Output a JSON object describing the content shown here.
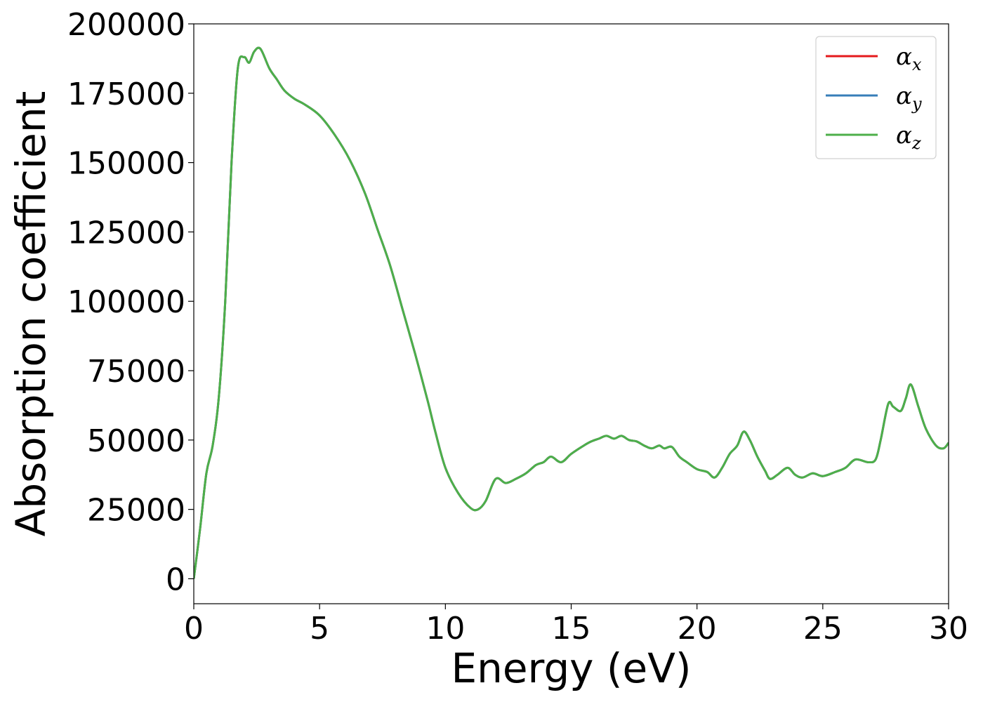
{
  "chart_data": {
    "type": "line",
    "title": "",
    "xlabel": "Energy (eV)",
    "ylabel": "Absorption coefficient",
    "xlim": [
      0,
      30
    ],
    "ylim": [
      -9000,
      200000
    ],
    "xticks": [
      0,
      5,
      10,
      15,
      20,
      25,
      30
    ],
    "xtick_labels": [
      "0",
      "5",
      "10",
      "15",
      "20",
      "25",
      "30"
    ],
    "yticks": [
      0,
      25000,
      50000,
      75000,
      100000,
      125000,
      150000,
      175000,
      200000
    ],
    "ytick_labels": [
      "0",
      "25000",
      "50000",
      "75000",
      "100000",
      "125000",
      "150000",
      "175000",
      "200000"
    ],
    "grid": false,
    "legend_position": "top-right",
    "x": [
      0,
      0.25,
      0.5,
      0.75,
      1.0,
      1.25,
      1.5,
      1.75,
      2.0,
      2.2,
      2.4,
      2.65,
      3.0,
      3.3,
      3.6,
      4.0,
      4.4,
      5.0,
      5.6,
      6.2,
      6.8,
      7.3,
      7.8,
      8.3,
      8.8,
      9.3,
      9.6,
      10.0,
      10.5,
      11.0,
      11.3,
      11.6,
      12.0,
      12.4,
      12.8,
      13.2,
      13.6,
      13.9,
      14.2,
      14.6,
      15.0,
      15.5,
      15.8,
      16.1,
      16.4,
      16.7,
      17.0,
      17.3,
      17.6,
      17.9,
      18.2,
      18.5,
      18.7,
      19.0,
      19.3,
      19.6,
      20.0,
      20.4,
      20.7,
      21.0,
      21.3,
      21.6,
      21.85,
      22.1,
      22.4,
      22.7,
      22.9,
      23.2,
      23.6,
      23.9,
      24.2,
      24.6,
      25.0,
      25.5,
      25.9,
      26.3,
      26.8,
      27.1,
      27.3,
      27.6,
      27.8,
      28.1,
      28.3,
      28.5,
      28.8,
      29.1,
      29.5,
      29.8,
      30.0
    ],
    "series": [
      {
        "name": "αx",
        "color": "#e41a1c",
        "values": [
          0,
          18000,
          38000,
          48000,
          66000,
          100000,
          150000,
          184000,
          188000,
          186000,
          190000,
          191000,
          184000,
          180000,
          176000,
          173000,
          171000,
          167000,
          160000,
          151000,
          139000,
          126000,
          113000,
          97000,
          81000,
          64000,
          53000,
          40000,
          31000,
          25500,
          25000,
          28000,
          36000,
          34500,
          36000,
          38000,
          41000,
          42000,
          44000,
          42000,
          45000,
          48000,
          49500,
          50500,
          51500,
          50500,
          51500,
          50000,
          49500,
          48000,
          47000,
          48000,
          47000,
          47500,
          44000,
          42000,
          39500,
          38500,
          36500,
          40000,
          45000,
          48000,
          53000,
          50000,
          44000,
          39000,
          36000,
          37500,
          40000,
          37500,
          36500,
          38000,
          37000,
          38500,
          40000,
          43000,
          42000,
          43000,
          50000,
          63000,
          62000,
          60500,
          65000,
          70000,
          62000,
          54000,
          48000,
          47000,
          49000
        ]
      },
      {
        "name": "αy",
        "color": "#377eb8",
        "values": [
          0,
          18000,
          38000,
          48000,
          66000,
          100000,
          150000,
          184000,
          188000,
          186000,
          190000,
          191000,
          184000,
          180000,
          176000,
          173000,
          171000,
          167000,
          160000,
          151000,
          139000,
          126000,
          113000,
          97000,
          81000,
          64000,
          53000,
          40000,
          31000,
          25500,
          25000,
          28000,
          36000,
          34500,
          36000,
          38000,
          41000,
          42000,
          44000,
          42000,
          45000,
          48000,
          49500,
          50500,
          51500,
          50500,
          51500,
          50000,
          49500,
          48000,
          47000,
          48000,
          47000,
          47500,
          44000,
          42000,
          39500,
          38500,
          36500,
          40000,
          45000,
          48000,
          53000,
          50000,
          44000,
          39000,
          36000,
          37500,
          40000,
          37500,
          36500,
          38000,
          37000,
          38500,
          40000,
          43000,
          42000,
          43000,
          50000,
          63000,
          62000,
          60500,
          65000,
          70000,
          62000,
          54000,
          48000,
          47000,
          49000
        ]
      },
      {
        "name": "αz",
        "color": "#4daf4a",
        "values": [
          0,
          18000,
          38000,
          48000,
          66000,
          100000,
          150000,
          184000,
          188000,
          186000,
          190000,
          191000,
          184000,
          180000,
          176000,
          173000,
          171000,
          167000,
          160000,
          151000,
          139000,
          126000,
          113000,
          97000,
          81000,
          64000,
          53000,
          40000,
          31000,
          25500,
          25000,
          28000,
          36000,
          34500,
          36000,
          38000,
          41000,
          42000,
          44000,
          42000,
          45000,
          48000,
          49500,
          50500,
          51500,
          50500,
          51500,
          50000,
          49500,
          48000,
          47000,
          48000,
          47000,
          47500,
          44000,
          42000,
          39500,
          38500,
          36500,
          40000,
          45000,
          48000,
          53000,
          50000,
          44000,
          39000,
          36000,
          37500,
          40000,
          37500,
          36500,
          38000,
          37000,
          38500,
          40000,
          43000,
          42000,
          43000,
          50000,
          63000,
          62000,
          60500,
          65000,
          70000,
          62000,
          54000,
          48000,
          47000,
          49000
        ]
      }
    ],
    "legend": [
      {
        "base": "α",
        "sub": "x",
        "color": "#e41a1c"
      },
      {
        "base": "α",
        "sub": "y",
        "color": "#377eb8"
      },
      {
        "base": "α",
        "sub": "z",
        "color": "#4daf4a"
      }
    ]
  }
}
